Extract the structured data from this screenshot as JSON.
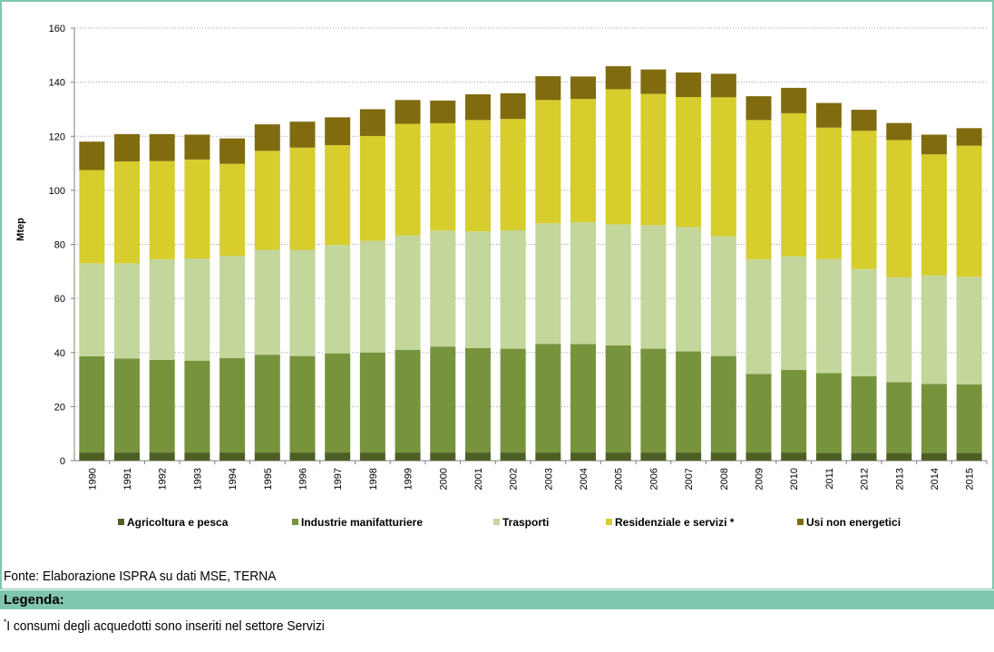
{
  "chart_data": {
    "type": "stacked_bar",
    "y_label": "Mtep",
    "categories": [
      "1990",
      "1991",
      "1992",
      "1993",
      "1994",
      "1995",
      "1996",
      "1997",
      "1998",
      "1999",
      "2000",
      "2001",
      "2002",
      "2003",
      "2004",
      "2005",
      "2006",
      "2007",
      "2008",
      "2009",
      "2010",
      "2011",
      "2012",
      "2013",
      "2014",
      "2015"
    ],
    "series": [
      {
        "name": "Agricoltura e pesca",
        "color": "#4e5f26",
        "values": [
          3,
          3,
          3,
          3,
          3,
          3,
          3,
          3,
          3,
          3,
          3,
          3,
          3,
          3,
          3,
          3,
          3,
          3,
          3,
          3,
          3,
          2.9,
          2.9,
          2.9,
          2.9,
          2.9
        ]
      },
      {
        "name": "Industrie manifatturiere",
        "color": "#77933c",
        "values": [
          35.6,
          34.8,
          34.3,
          34,
          35,
          36.2,
          35.7,
          36.7,
          37,
          38,
          39.2,
          38.6,
          38.4,
          40.2,
          40.1,
          39.6,
          38.4,
          37.4,
          35.7,
          29.1,
          30.6,
          29.5,
          28.3,
          26.1,
          25.5,
          25.3
        ]
      },
      {
        "name": "Trasporti",
        "color": "#c3d69b",
        "values": [
          34.4,
          35.2,
          37.2,
          37.8,
          37.8,
          38.8,
          39.3,
          40.1,
          41.3,
          42.3,
          42.9,
          43.2,
          43.8,
          44.6,
          45.1,
          44.8,
          45.7,
          46,
          44.3,
          42.4,
          42,
          42.2,
          39.7,
          38.8,
          40.1,
          39.8
        ]
      },
      {
        "name": "Residenziale e servizi *",
        "color": "#d7cd2c",
        "values": [
          34.5,
          37.7,
          36.3,
          36.6,
          34,
          36.6,
          37.8,
          36.9,
          38.8,
          41.3,
          39.7,
          41.2,
          41.2,
          45.6,
          45.6,
          50,
          48.6,
          48.1,
          51.4,
          51.5,
          52.9,
          48.6,
          51.1,
          50.8,
          44.8,
          48.5
        ]
      },
      {
        "name": "Usi non energetici",
        "color": "#806b0f",
        "values": [
          10.5,
          10.1,
          10,
          9.2,
          9.4,
          9.8,
          9.6,
          10.3,
          9.9,
          8.8,
          8.4,
          9.5,
          9.5,
          8.8,
          8.3,
          8.5,
          9,
          9.1,
          8.7,
          8.8,
          9.4,
          9.1,
          7.8,
          6.3,
          7.3,
          6.5
        ]
      }
    ],
    "ylim": [
      0,
      160
    ],
    "yticks": [
      0,
      20,
      40,
      60,
      80,
      100,
      120,
      140,
      160
    ],
    "grid": true,
    "legend": "bottom"
  },
  "footer": {
    "source": "Fonte: Elaborazione ISPRA su dati MSE, TERNA",
    "legend_title": "Legenda:",
    "note_marker": "*",
    "note": "I consumi degli acquedotti sono inseriti nel settore Servizi"
  }
}
